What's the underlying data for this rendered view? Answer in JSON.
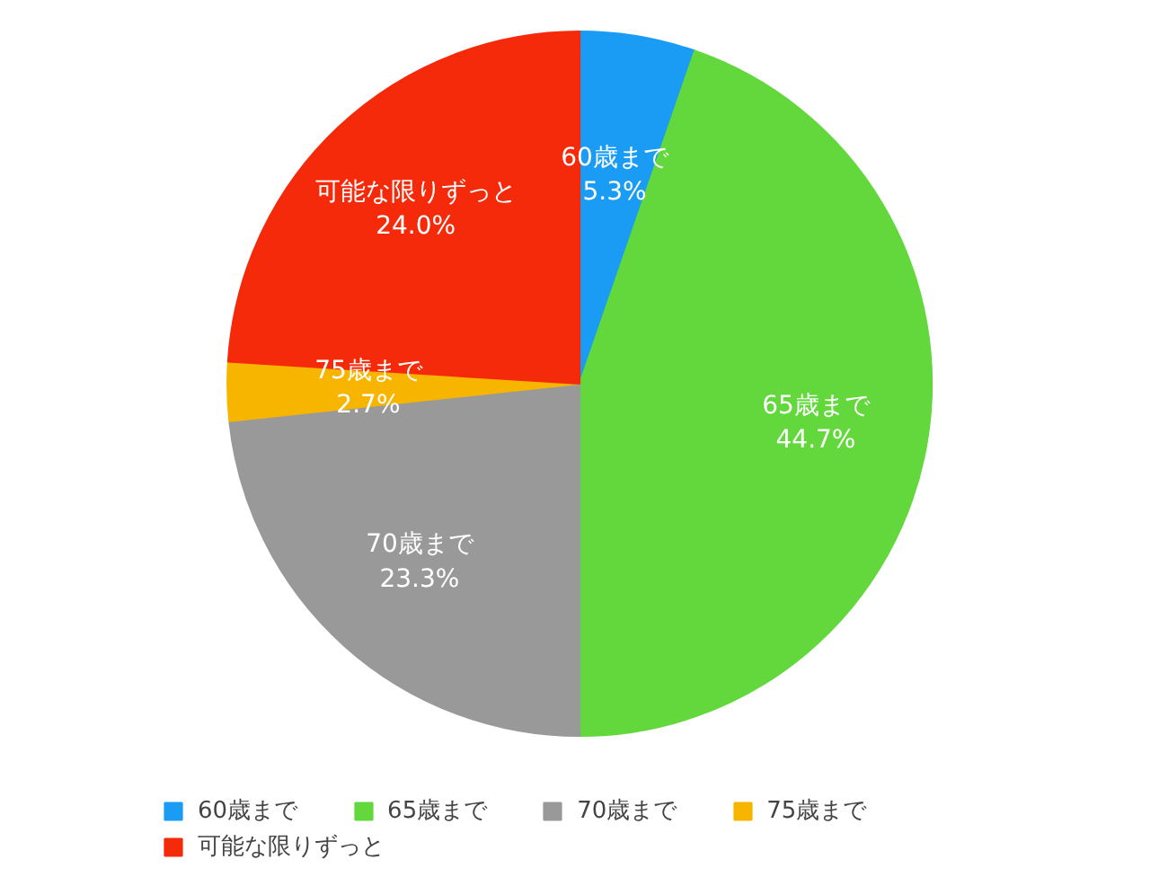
{
  "chart_data": {
    "type": "pie",
    "categories": [
      "60歳まで",
      "65歳まで",
      "70歳まで",
      "75歳まで",
      "可能な限りずっと"
    ],
    "values": [
      5.3,
      44.7,
      23.3,
      2.7,
      24.0
    ],
    "value_labels": [
      "5.3%",
      "44.7%",
      "23.3%",
      "2.7%",
      "24.0%"
    ],
    "colors": [
      "#1a9cf5",
      "#62d83c",
      "#999999",
      "#f7b500",
      "#f52a0a"
    ],
    "legend": "bottom"
  }
}
